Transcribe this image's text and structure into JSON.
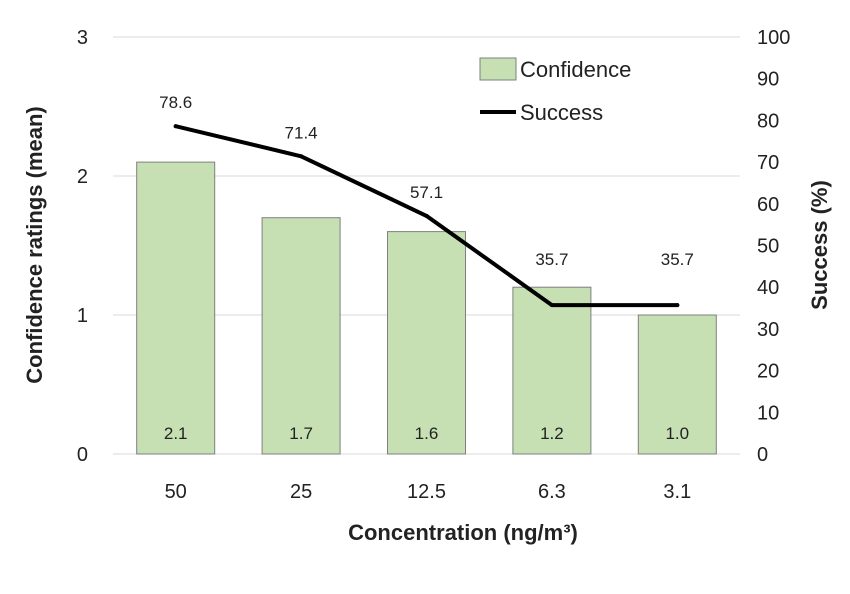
{
  "chart_data": {
    "type": "bar",
    "categories": [
      "50",
      "25",
      "12.5",
      "6.3",
      "3.1"
    ],
    "series": [
      {
        "name": "Confidence",
        "type": "bar",
        "axis": "left",
        "values": [
          2.1,
          1.7,
          1.6,
          1.2,
          1.0
        ],
        "labels": [
          "2.1",
          "1.7",
          "1.6",
          "1.2",
          "1.0"
        ],
        "color": "#c6e0b4",
        "border": "#7f7f7f"
      },
      {
        "name": "Success",
        "type": "line",
        "axis": "right",
        "values": [
          78.6,
          71.4,
          57.1,
          35.7,
          35.7
        ],
        "labels": [
          "78.6",
          "71.4",
          "57.1",
          "35.7",
          "35.7"
        ],
        "color": "#000000"
      }
    ],
    "xlabel": "Concentration (ng/m³)",
    "ylabel": "Confidence ratings (mean)",
    "y2label": "Success (%)",
    "ylim": [
      0,
      3
    ],
    "yticks": [
      "0",
      "1",
      "2",
      "3"
    ],
    "y2lim": [
      0,
      100
    ],
    "y2ticks": [
      "0",
      "10",
      "20",
      "30",
      "40",
      "50",
      "60",
      "70",
      "80",
      "90",
      "100"
    ],
    "grid": true,
    "legend_position": "top-right"
  }
}
